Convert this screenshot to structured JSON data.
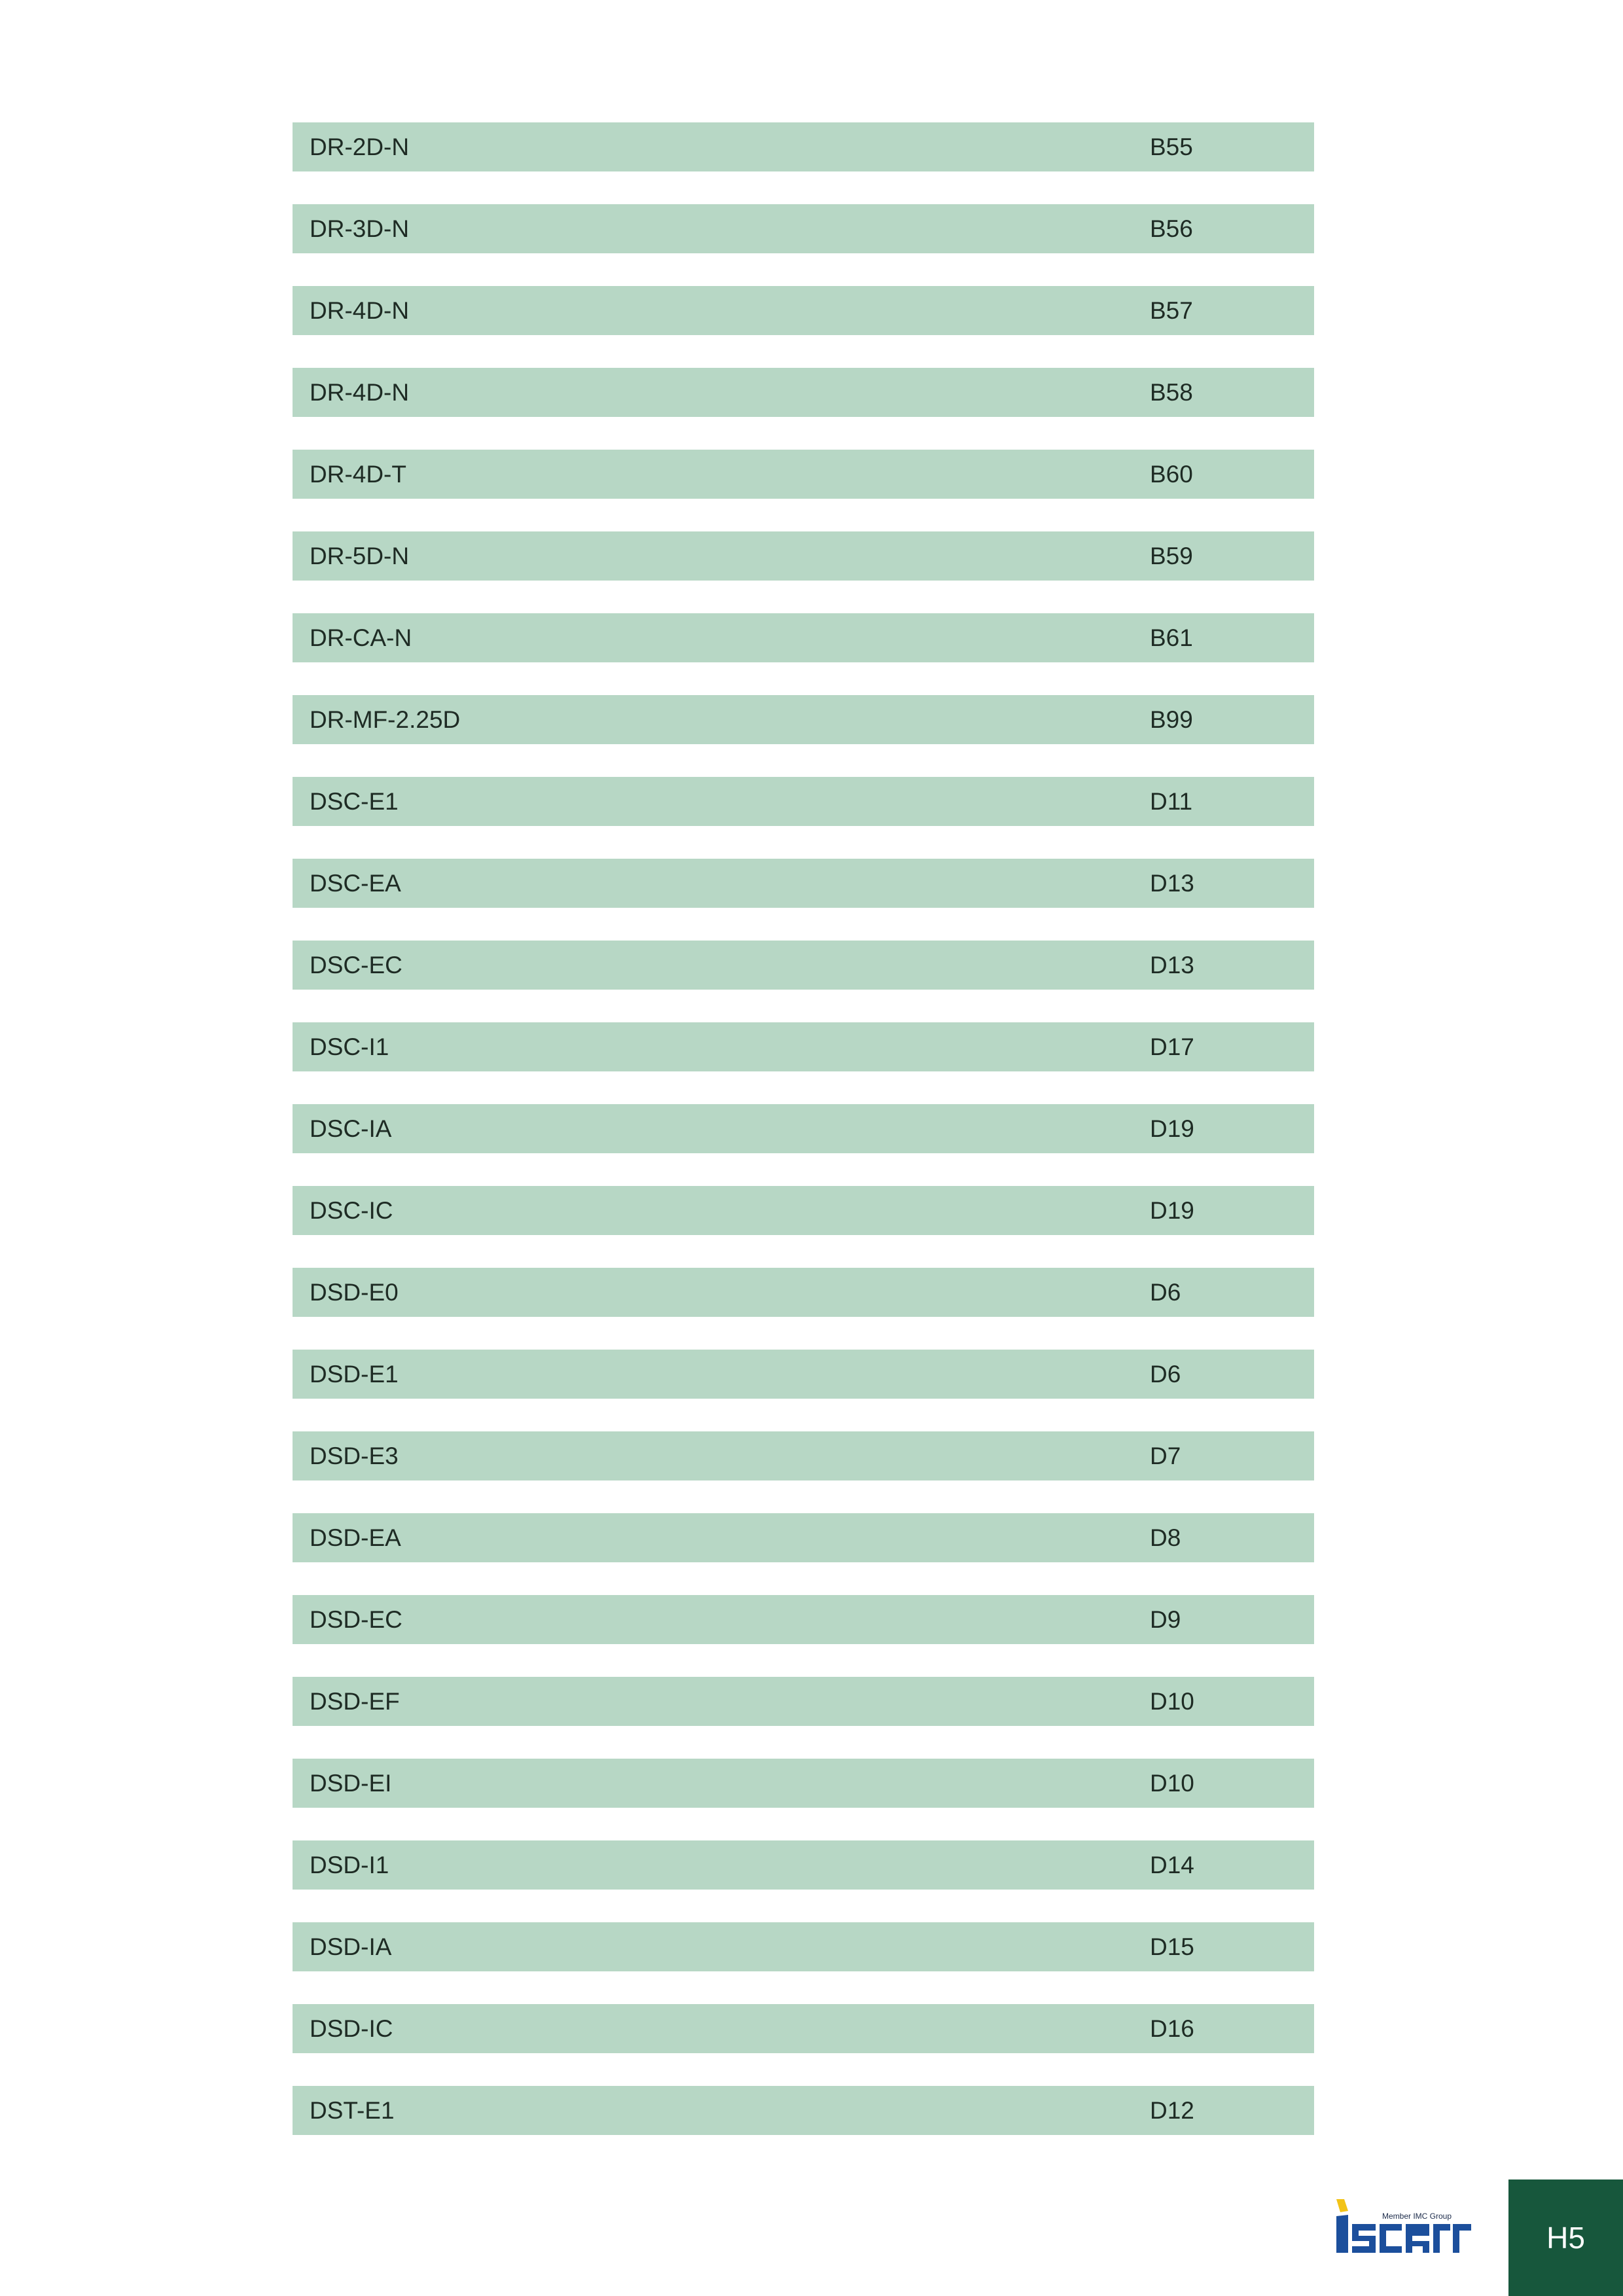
{
  "index": {
    "rows": [
      {
        "code": "DR-2D-N",
        "page": "B55"
      },
      {
        "code": "DR-3D-N",
        "page": "B56"
      },
      {
        "code": "DR-4D-N",
        "page": "B57"
      },
      {
        "code": "DR-4D-N",
        "page": "B58"
      },
      {
        "code": "DR-4D-T",
        "page": "B60"
      },
      {
        "code": "DR-5D-N",
        "page": "B59"
      },
      {
        "code": "DR-CA-N",
        "page": "B61"
      },
      {
        "code": "DR-MF-2.25D",
        "page": "B99"
      },
      {
        "code": "DSC-E1",
        "page": "D11"
      },
      {
        "code": "DSC-EA",
        "page": "D13"
      },
      {
        "code": "DSC-EC",
        "page": "D13"
      },
      {
        "code": "DSC-I1",
        "page": "D17"
      },
      {
        "code": "DSC-IA",
        "page": "D19"
      },
      {
        "code": "DSC-IC",
        "page": "D19"
      },
      {
        "code": "DSD-E0",
        "page": "D6"
      },
      {
        "code": "DSD-E1",
        "page": "D6"
      },
      {
        "code": "DSD-E3",
        "page": "D7"
      },
      {
        "code": "DSD-EA",
        "page": "D8"
      },
      {
        "code": "DSD-EC",
        "page": "D9"
      },
      {
        "code": "DSD-EF",
        "page": "D10"
      },
      {
        "code": "DSD-EI",
        "page": "D10"
      },
      {
        "code": "DSD-I1",
        "page": "D14"
      },
      {
        "code": "DSD-IA",
        "page": "D15"
      },
      {
        "code": "DSD-IC",
        "page": "D16"
      },
      {
        "code": "DST-E1",
        "page": "D12"
      }
    ]
  },
  "footer": {
    "logo_text": "iscar",
    "logo_tagline": "Member IMC Group",
    "page_label": "H5"
  },
  "colors": {
    "row_background": "#b7d7c5",
    "tab_background": "#17573c",
    "logo_blue": "#1c4f9c",
    "logo_yellow": "#f2c318"
  }
}
